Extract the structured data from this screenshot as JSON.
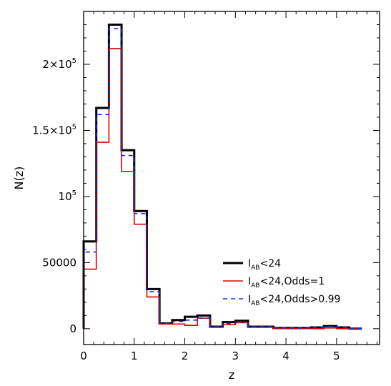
{
  "chart_data": {
    "type": "histogram-step",
    "title": "",
    "xlabel": "z",
    "ylabel": "N(z)",
    "xlim": [
      0,
      5.85
    ],
    "ylim": [
      -12000,
      240000.0
    ],
    "grid": false,
    "legend_position": "center-right",
    "x_ticks": [
      {
        "value": 0,
        "label": "0"
      },
      {
        "value": 1,
        "label": "1"
      },
      {
        "value": 2,
        "label": "2"
      },
      {
        "value": 3,
        "label": "3"
      },
      {
        "value": 4,
        "label": "4"
      },
      {
        "value": 5,
        "label": "5"
      }
    ],
    "y_ticks": [
      {
        "value": 0,
        "base": "0",
        "sup": ""
      },
      {
        "value": 50000,
        "base": "50000",
        "sup": ""
      },
      {
        "value": 100000,
        "base": "10",
        "sup": "5"
      },
      {
        "value": 150000,
        "base": "1.5×10",
        "sup": "5"
      },
      {
        "value": 200000,
        "base": "2×10",
        "sup": "5"
      }
    ],
    "bin_edges": [
      0,
      0.25,
      0.5,
      0.75,
      1.0,
      1.25,
      1.5,
      1.75,
      2.0,
      2.25,
      2.5,
      2.75,
      3.0,
      3.25,
      3.5,
      3.75,
      4.0,
      4.25,
      4.5,
      4.75,
      5.0,
      5.25,
      5.5,
      5.85
    ],
    "series": [
      {
        "name_main": "I",
        "name_sub": "AB",
        "name_rest": "<24",
        "color": "#000000",
        "dash": "",
        "width": 3,
        "values": [
          66000,
          167000,
          230000,
          135000,
          89000,
          30000,
          4000,
          6500,
          9000,
          10000,
          1500,
          5000,
          6000,
          1500,
          1500,
          500,
          500,
          500,
          1000,
          2000,
          1000,
          0
        ]
      },
      {
        "name_main": "I",
        "name_sub": "AB",
        "name_rest": "<24,Odds=1",
        "color": "#e00000",
        "dash": "",
        "width": 1.6,
        "values": [
          45000,
          141000,
          212000,
          119000,
          79000,
          24000,
          3500,
          3500,
          2500,
          8000,
          1000,
          3000,
          4500,
          1000,
          1000,
          0,
          0,
          0,
          0,
          500,
          0,
          0
        ]
      },
      {
        "name_main": "I",
        "name_sub": "AB",
        "name_rest": "<24,Odds>0.99",
        "color": "#1030e0",
        "dash": "6,5",
        "width": 1.6,
        "values": [
          58000,
          162000,
          227000,
          131000,
          87000,
          28000,
          4000,
          5500,
          6500,
          8000,
          1500,
          4000,
          5000,
          1500,
          1500,
          500,
          500,
          500,
          1000,
          1500,
          1000,
          0
        ]
      }
    ]
  }
}
